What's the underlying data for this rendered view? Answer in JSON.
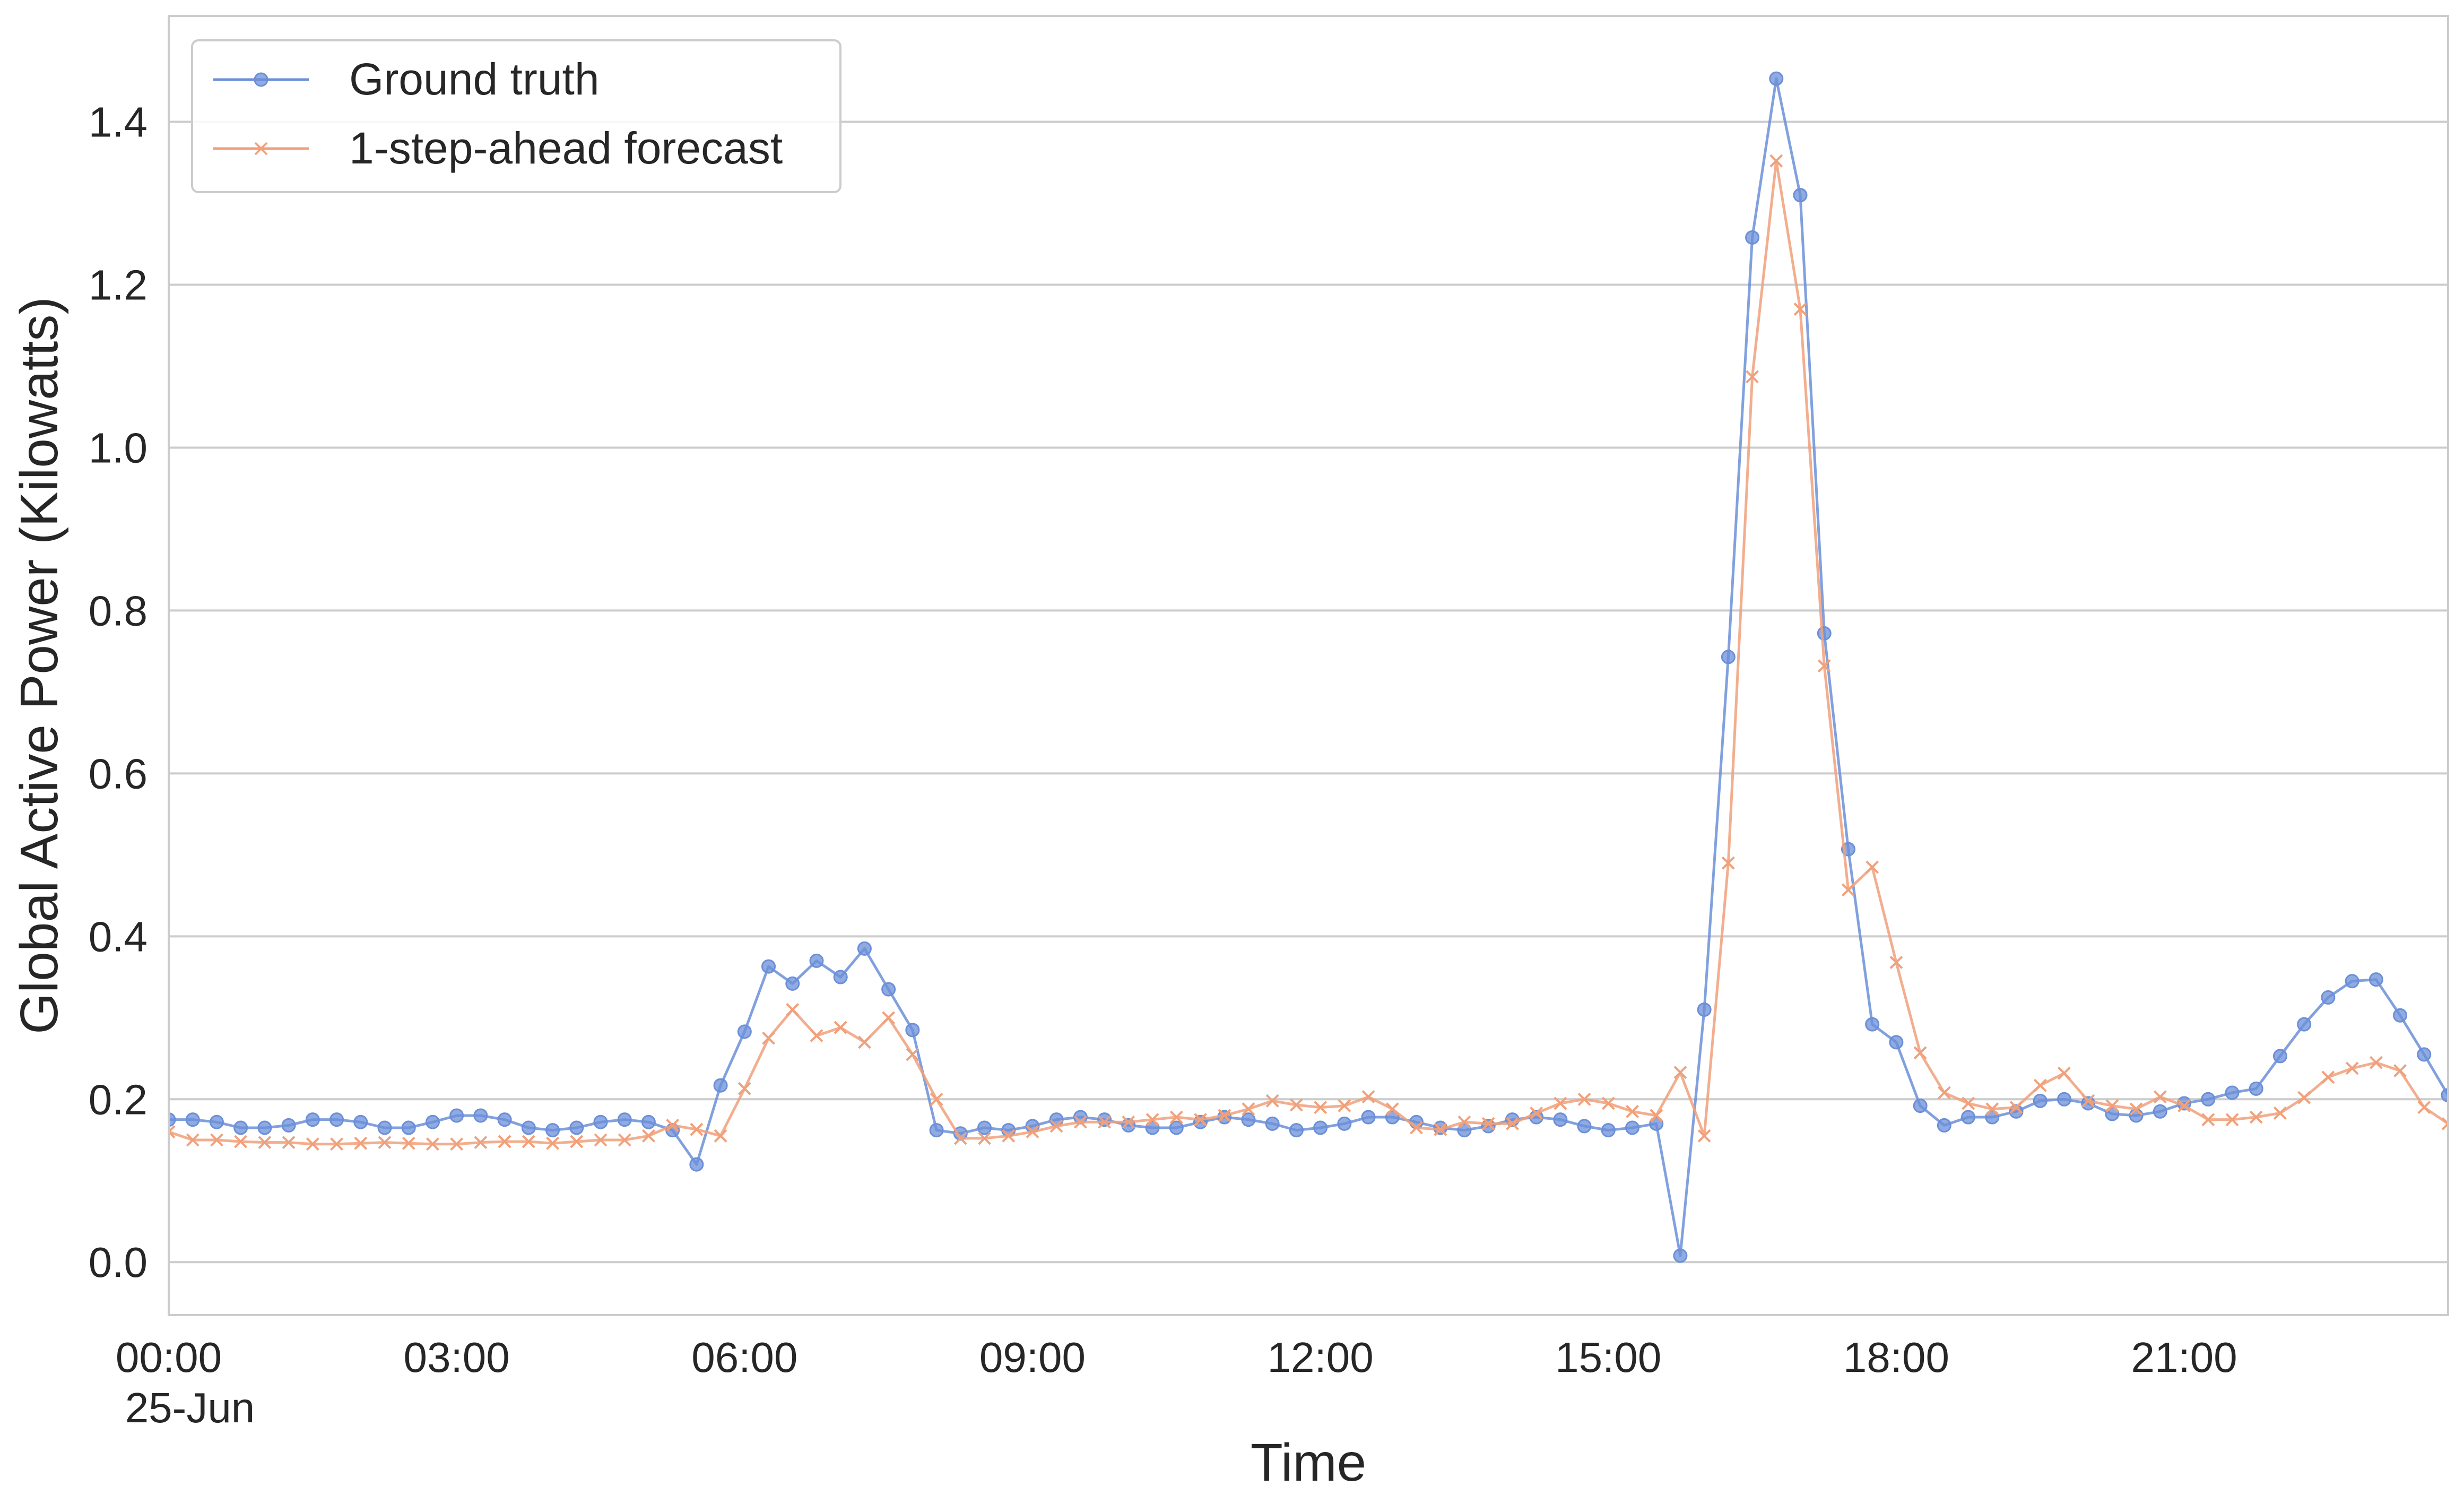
{
  "chart_data": {
    "type": "line",
    "title": "",
    "xlabel": "Time",
    "ylabel": "Global Active Power (Kilowatts)",
    "x_ticks": [
      {
        "time": "00:00",
        "sub": "25-Jun"
      },
      {
        "time": "03:00",
        "sub": ""
      },
      {
        "time": "06:00",
        "sub": ""
      },
      {
        "time": "09:00",
        "sub": ""
      },
      {
        "time": "12:00",
        "sub": ""
      },
      {
        "time": "15:00",
        "sub": ""
      },
      {
        "time": "18:00",
        "sub": ""
      },
      {
        "time": "21:00",
        "sub": ""
      }
    ],
    "y_ticks": [
      "0.0",
      "0.2",
      "0.4",
      "0.6",
      "0.8",
      "1.0",
      "1.2",
      "1.4"
    ],
    "xlim": [
      "25-Jun 00:00",
      "25-Jun 23:45"
    ],
    "ylim": [
      -0.065,
      1.53
    ],
    "x_step": "15 min",
    "grid": "horizontal",
    "legend_position": "top-left",
    "series": [
      {
        "name": "Ground truth",
        "color": "#6b8fd8",
        "marker": "circle",
        "values": [
          0.175,
          0.175,
          0.172,
          0.165,
          0.165,
          0.168,
          0.175,
          0.175,
          0.172,
          0.165,
          0.165,
          0.172,
          0.18,
          0.18,
          0.175,
          0.165,
          0.162,
          0.165,
          0.172,
          0.175,
          0.172,
          0.162,
          0.12,
          0.217,
          0.283,
          0.363,
          0.342,
          0.37,
          0.35,
          0.385,
          0.335,
          0.285,
          0.162,
          0.158,
          0.165,
          0.162,
          0.167,
          0.175,
          0.178,
          0.175,
          0.168,
          0.165,
          0.165,
          0.172,
          0.178,
          0.175,
          0.17,
          0.162,
          0.165,
          0.17,
          0.178,
          0.178,
          0.172,
          0.165,
          0.162,
          0.167,
          0.175,
          0.178,
          0.175,
          0.167,
          0.162,
          0.165,
          0.17,
          0.008,
          0.31,
          0.743,
          1.258,
          1.453,
          1.31,
          0.772,
          0.507,
          0.292,
          0.27,
          0.192,
          0.168,
          0.178,
          0.178,
          0.185,
          0.198,
          0.2,
          0.195,
          0.182,
          0.18,
          0.185,
          0.195,
          0.2,
          0.208,
          0.213,
          0.253,
          0.292,
          0.325,
          0.345,
          0.347,
          0.303,
          0.255,
          0.205
        ]
      },
      {
        "name": "1-step-ahead forecast",
        "color": "#f0a07a",
        "marker": "x",
        "values": [
          0.16,
          0.15,
          0.15,
          0.148,
          0.147,
          0.147,
          0.145,
          0.145,
          0.146,
          0.147,
          0.146,
          0.145,
          0.145,
          0.147,
          0.148,
          0.148,
          0.146,
          0.148,
          0.15,
          0.15,
          0.155,
          0.168,
          0.163,
          0.155,
          0.213,
          0.275,
          0.31,
          0.278,
          0.288,
          0.27,
          0.3,
          0.255,
          0.2,
          0.152,
          0.152,
          0.155,
          0.16,
          0.167,
          0.172,
          0.172,
          0.172,
          0.175,
          0.178,
          0.175,
          0.18,
          0.188,
          0.198,
          0.193,
          0.19,
          0.192,
          0.203,
          0.188,
          0.165,
          0.163,
          0.172,
          0.17,
          0.17,
          0.183,
          0.195,
          0.2,
          0.195,
          0.185,
          0.18,
          0.233,
          0.155,
          0.49,
          1.087,
          1.352,
          1.17,
          0.732,
          0.457,
          0.485,
          0.368,
          0.257,
          0.208,
          0.195,
          0.188,
          0.19,
          0.217,
          0.232,
          0.198,
          0.192,
          0.188,
          0.203,
          0.192,
          0.175,
          0.175,
          0.178,
          0.183,
          0.202,
          0.227,
          0.238,
          0.245,
          0.235,
          0.19,
          0.17
        ]
      }
    ]
  }
}
